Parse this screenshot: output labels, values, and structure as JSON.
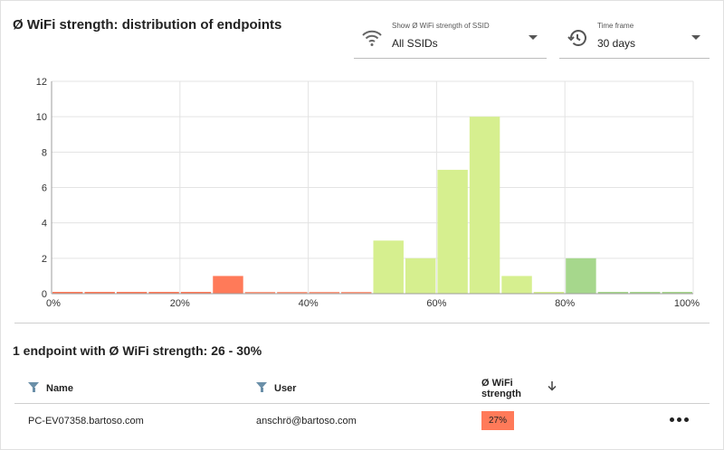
{
  "header": {
    "title": "Ø WiFi strength: distribution of endpoints"
  },
  "ssid_select": {
    "label": "Show Ø WiFi strength of SSID",
    "value": "All SSIDs",
    "icon": "wifi-icon"
  },
  "time_select": {
    "label": "Time frame",
    "value": "30 days",
    "icon": "history-icon"
  },
  "chart_data": {
    "type": "bar",
    "xlabel": "",
    "ylabel": "",
    "xlim": [
      0,
      100
    ],
    "ylim": [
      0,
      12
    ],
    "x_ticks": [
      "0%",
      "20%",
      "40%",
      "60%",
      "80%",
      "100%"
    ],
    "y_ticks": [
      0,
      2,
      4,
      6,
      8,
      10,
      12
    ],
    "grid": true,
    "bin_width": 5,
    "bins": [
      {
        "start": 0,
        "end": 5,
        "value": 0,
        "color": "#ff7a59"
      },
      {
        "start": 5,
        "end": 10,
        "value": 0,
        "color": "#ff7a59"
      },
      {
        "start": 10,
        "end": 15,
        "value": 0,
        "color": "#ff7a59"
      },
      {
        "start": 15,
        "end": 20,
        "value": 0,
        "color": "#ff7a59"
      },
      {
        "start": 20,
        "end": 25,
        "value": 0,
        "color": "#ff7a59"
      },
      {
        "start": 25,
        "end": 30,
        "value": 1,
        "color": "#ff7a59"
      },
      {
        "start": 30,
        "end": 35,
        "value": 0,
        "color": "#ff9a7e"
      },
      {
        "start": 35,
        "end": 40,
        "value": 0,
        "color": "#ff9a7e"
      },
      {
        "start": 40,
        "end": 45,
        "value": 0,
        "color": "#ff9a7e"
      },
      {
        "start": 45,
        "end": 50,
        "value": 0,
        "color": "#ff9a7e"
      },
      {
        "start": 50,
        "end": 55,
        "value": 3,
        "color": "#d6ef8f"
      },
      {
        "start": 55,
        "end": 60,
        "value": 2,
        "color": "#d6ef8f"
      },
      {
        "start": 60,
        "end": 65,
        "value": 7,
        "color": "#d6ef8f"
      },
      {
        "start": 65,
        "end": 70,
        "value": 10,
        "color": "#d6ef8f"
      },
      {
        "start": 70,
        "end": 75,
        "value": 1,
        "color": "#d6ef8f"
      },
      {
        "start": 75,
        "end": 80,
        "value": 0,
        "color": "#d6ef8f"
      },
      {
        "start": 80,
        "end": 85,
        "value": 2,
        "color": "#a6d78c"
      },
      {
        "start": 85,
        "end": 90,
        "value": 0,
        "color": "#a6d78c"
      },
      {
        "start": 90,
        "end": 95,
        "value": 0,
        "color": "#a6d78c"
      },
      {
        "start": 95,
        "end": 100,
        "value": 0,
        "color": "#a6d78c"
      }
    ]
  },
  "details": {
    "title": "1 endpoint with Ø WiFi strength: 26 - 30%",
    "columns": {
      "name": "Name",
      "user": "User",
      "strength_line1": "Ø WiFi",
      "strength_line2": "strength"
    },
    "sort_icon": "arrow-down-icon",
    "filter_icon": "filter-icon",
    "rows": [
      {
        "name": "PC-EV07358.bartoso.com",
        "user": "anschrö@bartoso.com",
        "strength": "27%",
        "strength_color": "#ff7a59"
      }
    ]
  }
}
